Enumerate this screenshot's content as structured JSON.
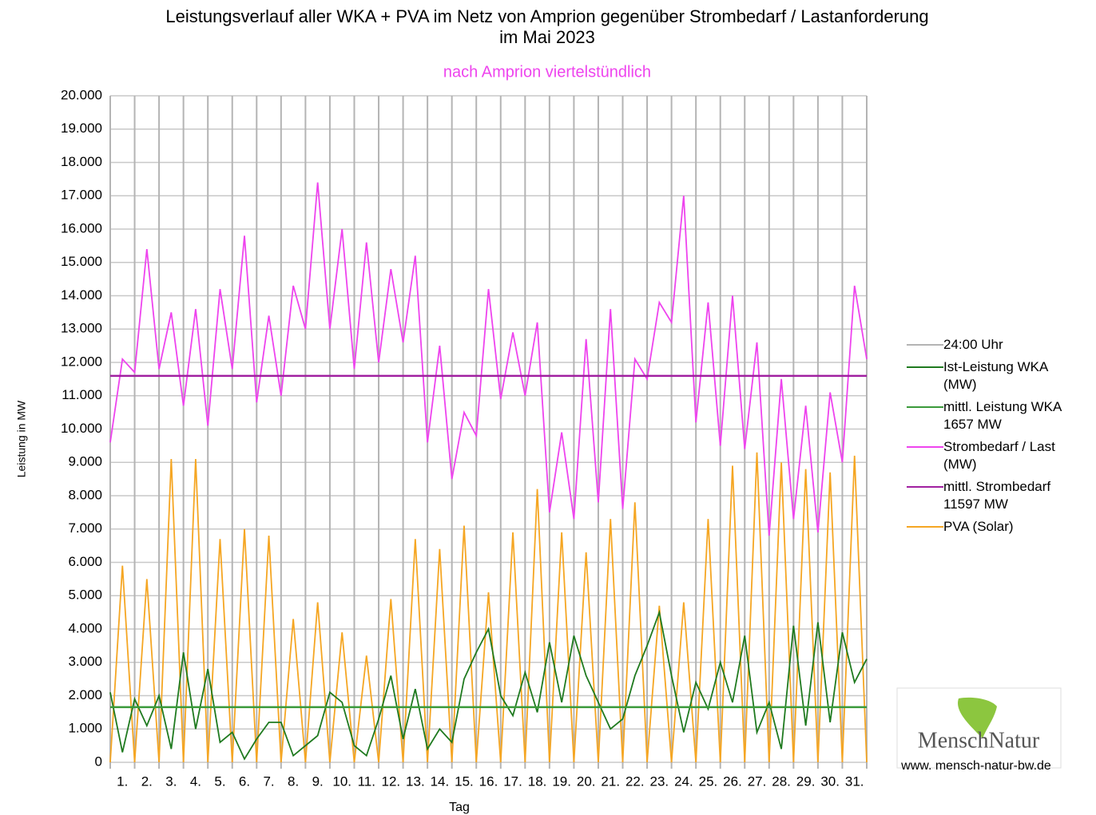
{
  "chart_data": {
    "type": "line",
    "title": "Leistungsverlauf aller WKA + PVA im Netz von Amprion gegenüber  Strombedarf / Lastanforderung",
    "title_line2": "im Mai 2023",
    "subtitle": "nach Amprion viertelstündlich",
    "y_label": "Leistung in MW",
    "x_label": "Tag",
    "categories": [
      "1.",
      "2.",
      "3.",
      "4.",
      "5.",
      "6.",
      "7.",
      "8.",
      "9.",
      "10.",
      "11.",
      "12.",
      "13.",
      "14.",
      "15.",
      "16.",
      "17.",
      "18.",
      "19.",
      "20.",
      "21.",
      "22.",
      "23.",
      "24.",
      "25.",
      "26.",
      "27.",
      "28.",
      "29.",
      "30.",
      "31."
    ],
    "x": [
      0,
      0.5,
      1,
      1.5,
      2,
      2.5,
      3,
      3.5,
      4,
      4.5,
      5,
      5.5,
      6,
      6.5,
      7,
      7.5,
      8,
      8.5,
      9,
      9.5,
      10,
      10.5,
      11,
      11.5,
      12,
      12.5,
      13,
      13.5,
      14,
      14.5,
      15,
      15.5,
      16,
      16.5,
      17,
      17.5,
      18,
      18.5,
      19,
      19.5,
      20,
      20.5,
      21,
      21.5,
      22,
      22.5,
      23,
      23.5,
      24,
      24.5,
      25,
      25.5,
      26,
      26.5,
      27,
      27.5,
      28,
      28.5,
      29,
      29.5,
      30,
      30.5,
      31
    ],
    "xlim": [
      0,
      31
    ],
    "ylim": [
      0,
      20000
    ],
    "yticks": [
      0,
      {
        "value": 1000,
        "label": "1.000"
      },
      {
        "value": 2000,
        "label": "2.000"
      },
      {
        "value": 3000,
        "label": "3.000"
      },
      {
        "value": 4000,
        "label": "4.000"
      },
      {
        "value": 5000,
        "label": "5.000"
      },
      {
        "value": 6000,
        "label": "6.000"
      },
      {
        "value": 7000,
        "label": "7.000"
      },
      {
        "value": 8000,
        "label": "8.000"
      },
      {
        "value": 9000,
        "label": "9.000"
      },
      {
        "value": 10000,
        "label": "10.000"
      },
      {
        "value": 11000,
        "label": "11.000"
      },
      {
        "value": 12000,
        "label": "12.000"
      },
      {
        "value": 13000,
        "label": "13.000"
      },
      {
        "value": 14000,
        "label": "14.000"
      },
      {
        "value": 15000,
        "label": "15.000"
      },
      {
        "value": 16000,
        "label": "16.000"
      },
      {
        "value": 17000,
        "label": "17.000"
      },
      {
        "value": 18000,
        "label": "18.000"
      },
      {
        "value": 19000,
        "label": "19.000"
      },
      {
        "value": 20000,
        "label": "20.000"
      }
    ],
    "grid": true,
    "legend": "right",
    "series": [
      {
        "name": "24:00 Uhr",
        "color": "#b4b4b4"
      },
      {
        "name": "Ist-Leistung WKA (MW)",
        "color": "#1f7a1f",
        "values": [
          2100,
          300,
          1900,
          1100,
          2000,
          400,
          3300,
          1000,
          2800,
          600,
          900,
          100,
          700,
          1200,
          1200,
          200,
          500,
          800,
          2100,
          1800,
          500,
          200,
          1300,
          2600,
          700,
          2200,
          400,
          1000,
          600,
          2500,
          3300,
          4000,
          2000,
          1400,
          2700,
          1500,
          3600,
          1800,
          3800,
          2600,
          1800,
          1000,
          1300,
          2600,
          3500,
          4500,
          2600,
          900,
          2400,
          1600,
          3000,
          1800,
          3800,
          900,
          1800,
          400,
          4100,
          1100,
          4200,
          1200,
          3900,
          2400,
          3100
        ]
      },
      {
        "name": "mittl. Leistung WKA 1657 MW",
        "color": "#3a9a3a",
        "value": 1657
      },
      {
        "name": "Strombedarf / Last (MW)",
        "color": "#ee44ee",
        "values": [
          9600,
          12100,
          11700,
          15400,
          11800,
          13500,
          10700,
          13600,
          10100,
          14200,
          11800,
          15800,
          10800,
          13400,
          11000,
          14300,
          13000,
          17400,
          13000,
          16000,
          11800,
          15600,
          12000,
          14800,
          12600,
          15200,
          9600,
          12500,
          8500,
          10500,
          9800,
          14200,
          10900,
          12900,
          11000,
          13200,
          7500,
          9900,
          7300,
          12700,
          7800,
          13600,
          7600,
          12100,
          11500,
          13800,
          13200,
          17000,
          10200,
          13800,
          9500,
          14000,
          9400,
          12600,
          6800,
          11500,
          7300,
          10700,
          6900,
          11100,
          9000,
          14300,
          12100
        ]
      },
      {
        "name": "mittl. Strombedarf 11597 MW",
        "color": "#a020a0",
        "value": 11597
      },
      {
        "name": "PVA (Solar)",
        "color": "#f5a623",
        "values": [
          0,
          5900,
          0,
          5500,
          0,
          9100,
          0,
          9100,
          0,
          6700,
          0,
          7000,
          0,
          6800,
          0,
          4300,
          0,
          4800,
          0,
          3900,
          0,
          3200,
          0,
          4900,
          0,
          6700,
          0,
          6400,
          0,
          7100,
          0,
          5100,
          0,
          6900,
          0,
          8200,
          0,
          6900,
          0,
          6300,
          0,
          7300,
          0,
          7800,
          0,
          4700,
          0,
          4800,
          0,
          7300,
          0,
          8900,
          0,
          9300,
          0,
          9000,
          0,
          8800,
          0,
          8700,
          0,
          9200,
          0
        ]
      }
    ]
  },
  "logo": {
    "name": "MenschNatur",
    "url": "www. mensch-natur-bw.de"
  }
}
